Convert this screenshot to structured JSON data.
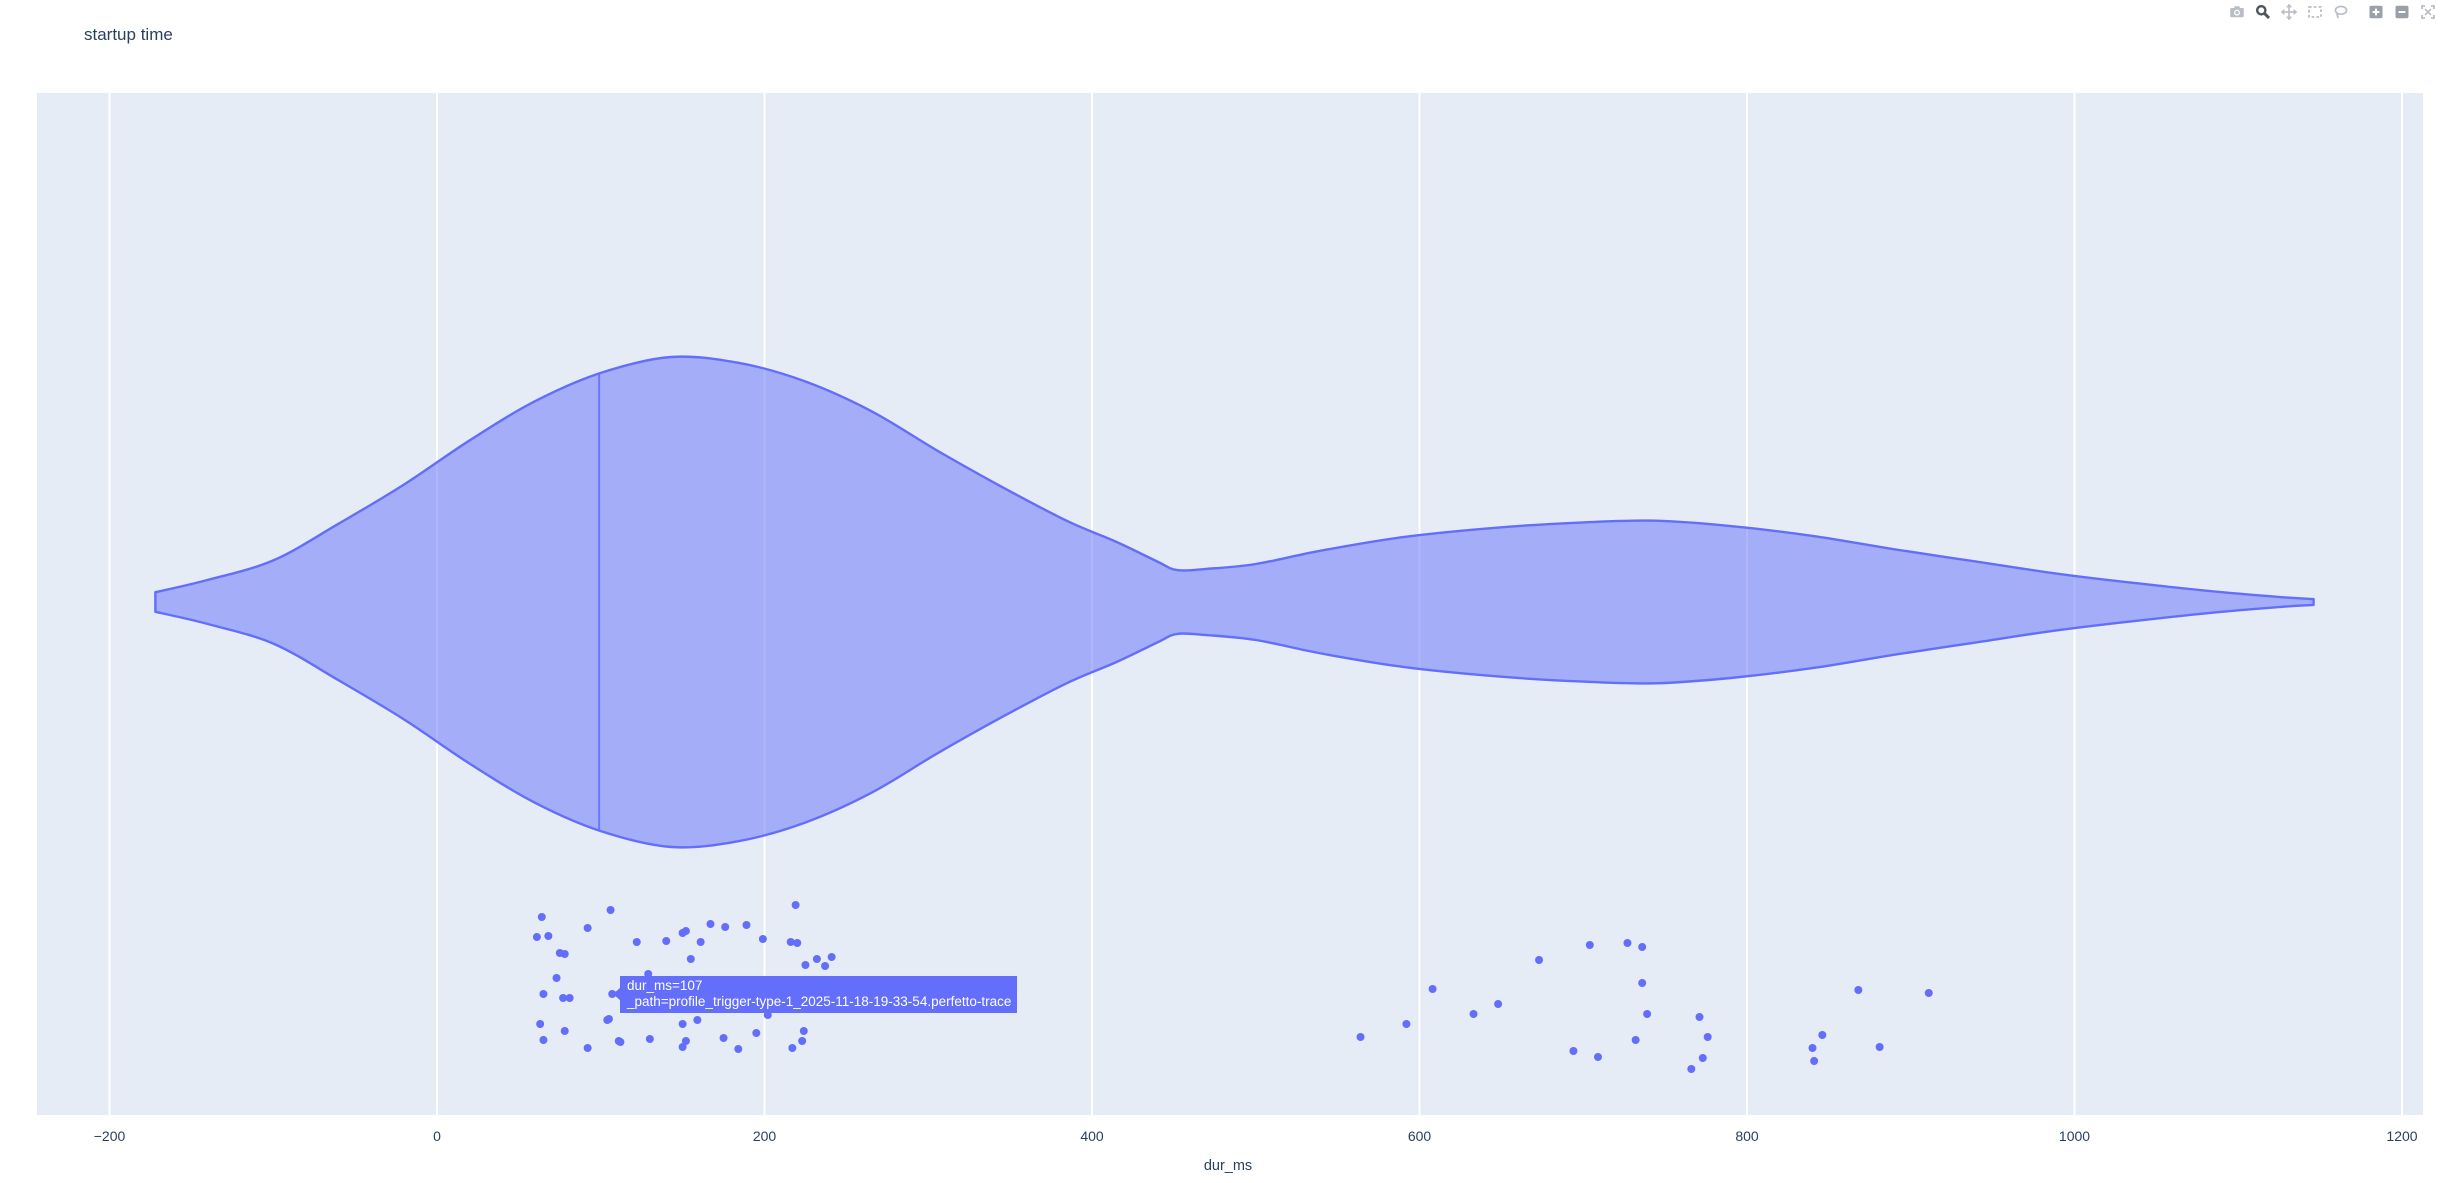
{
  "title": "startup time",
  "modebar": {
    "buttons": [
      {
        "name": "download-plot-as-png",
        "icon": "camera-icon",
        "active": false
      },
      {
        "name": "zoom",
        "icon": "magnifier-icon",
        "active": true
      },
      {
        "name": "pan",
        "icon": "pan-arrows-icon",
        "active": false
      },
      {
        "name": "box-select",
        "icon": "dashed-box-icon",
        "active": false
      },
      {
        "name": "lasso-select",
        "icon": "lasso-icon",
        "active": false
      },
      {
        "name": "zoom-in",
        "icon": "plus-square-icon",
        "active": false
      },
      {
        "name": "zoom-out",
        "icon": "minus-square-icon",
        "active": false
      },
      {
        "name": "autoscale",
        "icon": "expand-icon",
        "active": false
      }
    ]
  },
  "tooltip": {
    "line1": "dur_ms=107",
    "line2": "_path=profile_trigger-type-1_2025-11-18-19-33-54.perfetto-trace"
  },
  "colors": {
    "plot_bg": "#e5ecf6",
    "gridline": "#ffffff",
    "trace": "#636efa",
    "violin_fill": "rgba(99,110,250,0.5)",
    "text": "#2a3f5f",
    "tooltip_bg": "#636efa",
    "tooltip_text": "#ffffff"
  },
  "chart_data": {
    "type": "violin",
    "orientation": "horizontal",
    "title": "startup time",
    "xlabel": "dur_ms",
    "ylabel": "",
    "grid": true,
    "x_range": [
      -244,
      1213
    ],
    "x_ticks": [
      {
        "value": -200,
        "label": "−200"
      },
      {
        "value": 0,
        "label": "0"
      },
      {
        "value": 200,
        "label": "200"
      },
      {
        "value": 400,
        "label": "400"
      },
      {
        "value": 600,
        "label": "600"
      },
      {
        "value": 800,
        "label": "800"
      },
      {
        "value": 1000,
        "label": "1000"
      },
      {
        "value": 1200,
        "label": "1200"
      }
    ],
    "violin": {
      "span_dur_ms": [
        -172,
        1146
      ],
      "median_dur_ms": 99,
      "peak_dur_ms": 143,
      "second_mode_dur_ms": 744,
      "waist_dur_ms": 452,
      "profile_ms_density": [
        [
          -172,
          0.04
        ],
        [
          -140,
          0.09
        ],
        [
          -100,
          0.17
        ],
        [
          -60,
          0.32
        ],
        [
          -20,
          0.48
        ],
        [
          20,
          0.66
        ],
        [
          60,
          0.82
        ],
        [
          100,
          0.935
        ],
        [
          143,
          1.0
        ],
        [
          185,
          0.975
        ],
        [
          225,
          0.9
        ],
        [
          265,
          0.78
        ],
        [
          305,
          0.62
        ],
        [
          345,
          0.47
        ],
        [
          385,
          0.33
        ],
        [
          415,
          0.245
        ],
        [
          440,
          0.165
        ],
        [
          452,
          0.13
        ],
        [
          470,
          0.135
        ],
        [
          500,
          0.155
        ],
        [
          540,
          0.21
        ],
        [
          590,
          0.265
        ],
        [
          650,
          0.305
        ],
        [
          700,
          0.325
        ],
        [
          744,
          0.332
        ],
        [
          790,
          0.31
        ],
        [
          840,
          0.27
        ],
        [
          890,
          0.215
        ],
        [
          940,
          0.165
        ],
        [
          990,
          0.115
        ],
        [
          1040,
          0.075
        ],
        [
          1090,
          0.04
        ],
        [
          1130,
          0.018
        ],
        [
          1146,
          0.012
        ]
      ]
    },
    "hovered_point": {
      "dur_ms": 107,
      "path": "profile_trigger-type-1_2025-11-18-19-33-54.perfetto-trace"
    },
    "points_dur_ms_jittery": [
      [
        64,
        917
      ],
      [
        61,
        937
      ],
      [
        68,
        936
      ],
      [
        75,
        953
      ],
      [
        78,
        954
      ],
      [
        73,
        978
      ],
      [
        65,
        994
      ],
      [
        77,
        998
      ],
      [
        81,
        998
      ],
      [
        63,
        1024
      ],
      [
        78,
        1031
      ],
      [
        65,
        1040
      ],
      [
        92,
        928
      ],
      [
        106,
        910
      ],
      [
        92,
        1048
      ],
      [
        104,
        1020
      ],
      [
        111,
        1041
      ],
      [
        122,
        942
      ],
      [
        129,
        974
      ],
      [
        140,
        941
      ],
      [
        150,
        933
      ],
      [
        152,
        931
      ],
      [
        155,
        959
      ],
      [
        161,
        942
      ],
      [
        167,
        924
      ],
      [
        176,
        927
      ],
      [
        189,
        925
      ],
      [
        199,
        939
      ],
      [
        216,
        942
      ],
      [
        219,
        905
      ],
      [
        220,
        943
      ],
      [
        225,
        965
      ],
      [
        232,
        959
      ],
      [
        237,
        966
      ],
      [
        241,
        957
      ],
      [
        150,
        1024
      ],
      [
        159,
        1020
      ],
      [
        150,
        1047
      ],
      [
        152,
        1041
      ],
      [
        175,
        1038
      ],
      [
        184,
        1049
      ],
      [
        195,
        1033
      ],
      [
        202,
        1015
      ],
      [
        217,
        1048
      ],
      [
        223,
        1041
      ],
      [
        224,
        1031
      ],
      [
        107,
        994
      ],
      [
        112,
        1042
      ],
      [
        105,
        1019
      ],
      [
        130,
        1039
      ],
      [
        243,
        1005
      ],
      [
        564,
        1037
      ],
      [
        592,
        1024
      ],
      [
        608,
        989
      ],
      [
        633,
        1014
      ],
      [
        648,
        1004
      ],
      [
        673,
        960
      ],
      [
        704,
        945
      ],
      [
        694,
        1051
      ],
      [
        709,
        1057
      ],
      [
        727,
        943
      ],
      [
        736,
        947
      ],
      [
        732,
        1040
      ],
      [
        736,
        983
      ],
      [
        739,
        1014
      ],
      [
        771,
        1017
      ],
      [
        773,
        1058
      ],
      [
        776,
        1037
      ],
      [
        766,
        1069
      ],
      [
        840,
        1048
      ],
      [
        841,
        1061
      ],
      [
        846,
        1035
      ],
      [
        868,
        990
      ],
      [
        881,
        1047
      ],
      [
        911,
        993
      ]
    ]
  }
}
